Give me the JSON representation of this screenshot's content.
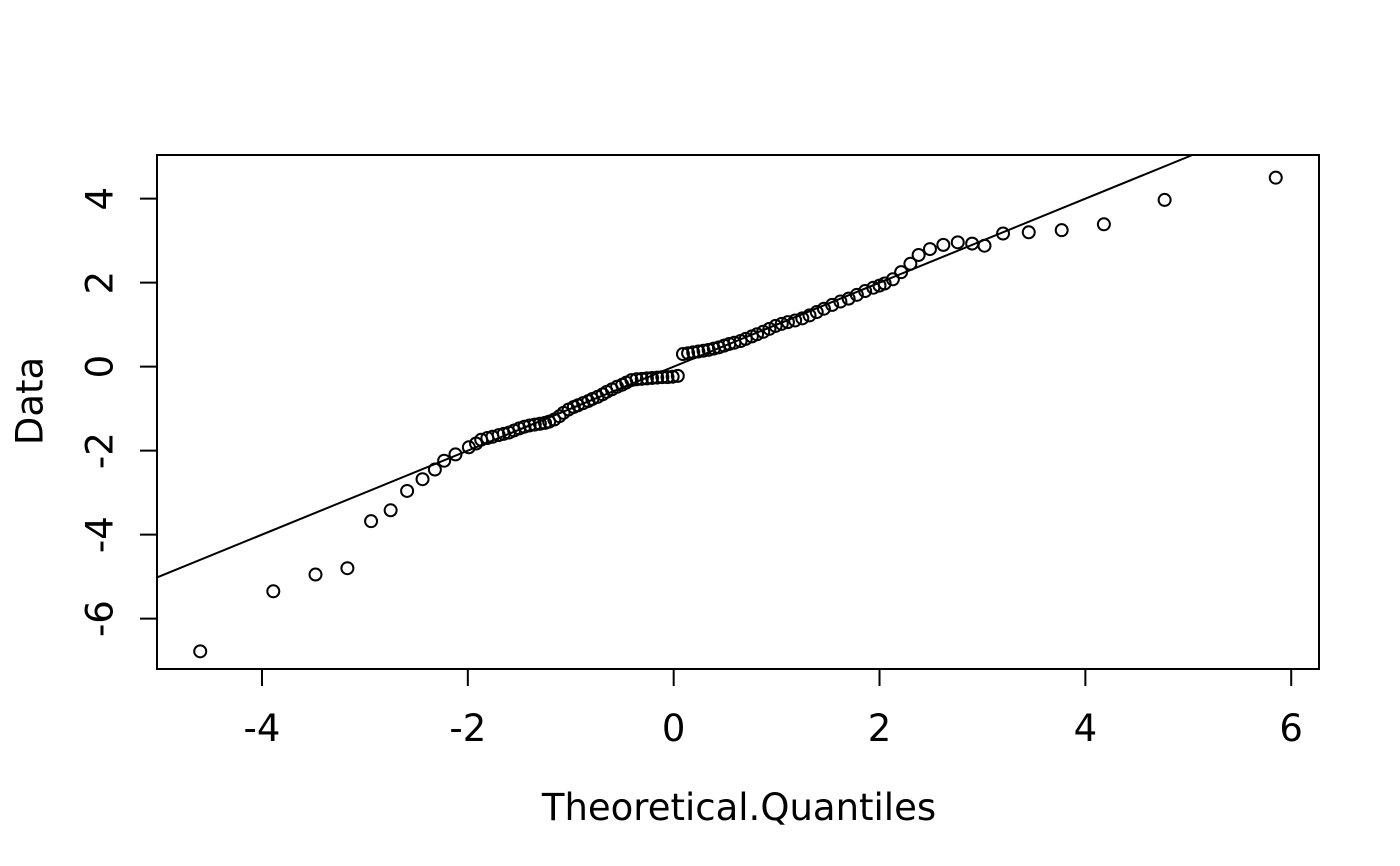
{
  "figure": {
    "background": "#ffffff",
    "foreground": "#000000"
  },
  "chart_data": {
    "type": "scatter",
    "title": "",
    "xlabel": "Theoretical.Quantiles",
    "ylabel": "Data",
    "xlim": [
      -5.02,
      6.27
    ],
    "ylim": [
      -7.2,
      5.04
    ],
    "xticks": [
      -4,
      -2,
      0,
      2,
      4,
      6
    ],
    "yticks": [
      -6,
      -4,
      -2,
      0,
      2,
      4
    ],
    "grid": false,
    "legend": null,
    "marker": "open-circle",
    "marker_color": "#000000",
    "reference_line": {
      "intercept": 0,
      "slope": 1,
      "color": "#000000"
    },
    "points": [
      [
        -4.6,
        -6.78
      ],
      [
        -3.89,
        -5.35
      ],
      [
        -3.48,
        -4.95
      ],
      [
        -3.17,
        -4.8
      ],
      [
        -2.94,
        -3.68
      ],
      [
        -2.75,
        -3.42
      ],
      [
        -2.59,
        -2.96
      ],
      [
        -2.44,
        -2.68
      ],
      [
        -2.32,
        -2.45
      ],
      [
        -2.23,
        -2.24
      ],
      [
        -2.12,
        -2.09
      ],
      [
        -1.99,
        -1.92
      ],
      [
        -1.92,
        -1.83
      ],
      [
        -1.87,
        -1.74
      ],
      [
        -1.81,
        -1.7
      ],
      [
        -1.76,
        -1.67
      ],
      [
        -1.7,
        -1.63
      ],
      [
        -1.65,
        -1.6
      ],
      [
        -1.6,
        -1.57
      ],
      [
        -1.55,
        -1.52
      ],
      [
        -1.5,
        -1.47
      ],
      [
        -1.45,
        -1.43
      ],
      [
        -1.4,
        -1.4
      ],
      [
        -1.35,
        -1.38
      ],
      [
        -1.3,
        -1.36
      ],
      [
        -1.25,
        -1.34
      ],
      [
        -1.21,
        -1.31
      ],
      [
        -1.16,
        -1.26
      ],
      [
        -1.11,
        -1.18
      ],
      [
        -1.07,
        -1.1
      ],
      [
        -1.02,
        -1.02
      ],
      [
        -0.97,
        -0.96
      ],
      [
        -0.93,
        -0.92
      ],
      [
        -0.88,
        -0.87
      ],
      [
        -0.83,
        -0.82
      ],
      [
        -0.79,
        -0.77
      ],
      [
        -0.74,
        -0.72
      ],
      [
        -0.69,
        -0.66
      ],
      [
        -0.65,
        -0.6
      ],
      [
        -0.6,
        -0.54
      ],
      [
        -0.55,
        -0.48
      ],
      [
        -0.5,
        -0.43
      ],
      [
        -0.46,
        -0.38
      ],
      [
        -0.41,
        -0.32
      ],
      [
        -0.36,
        -0.3
      ],
      [
        -0.31,
        -0.29
      ],
      [
        -0.26,
        -0.28
      ],
      [
        -0.21,
        -0.27
      ],
      [
        -0.16,
        -0.26
      ],
      [
        -0.11,
        -0.25
      ],
      [
        -0.06,
        -0.25
      ],
      [
        -0.01,
        -0.24
      ],
      [
        0.04,
        -0.22
      ],
      [
        0.09,
        0.3
      ],
      [
        0.14,
        0.32
      ],
      [
        0.19,
        0.34
      ],
      [
        0.24,
        0.36
      ],
      [
        0.29,
        0.38
      ],
      [
        0.34,
        0.4
      ],
      [
        0.39,
        0.43
      ],
      [
        0.44,
        0.46
      ],
      [
        0.49,
        0.5
      ],
      [
        0.54,
        0.54
      ],
      [
        0.59,
        0.57
      ],
      [
        0.65,
        0.61
      ],
      [
        0.7,
        0.66
      ],
      [
        0.76,
        0.72
      ],
      [
        0.81,
        0.77
      ],
      [
        0.87,
        0.83
      ],
      [
        0.93,
        0.9
      ],
      [
        0.99,
        0.97
      ],
      [
        1.05,
        1.02
      ],
      [
        1.11,
        1.06
      ],
      [
        1.18,
        1.1
      ],
      [
        1.25,
        1.15
      ],
      [
        1.32,
        1.22
      ],
      [
        1.39,
        1.3
      ],
      [
        1.46,
        1.38
      ],
      [
        1.54,
        1.47
      ],
      [
        1.62,
        1.55
      ],
      [
        1.7,
        1.62
      ],
      [
        1.78,
        1.71
      ],
      [
        1.86,
        1.8
      ],
      [
        1.94,
        1.88
      ],
      [
        2.0,
        1.93
      ],
      [
        2.05,
        1.98
      ],
      [
        2.13,
        2.08
      ],
      [
        2.21,
        2.25
      ],
      [
        2.3,
        2.45
      ],
      [
        2.38,
        2.66
      ],
      [
        2.49,
        2.8
      ],
      [
        2.62,
        2.9
      ],
      [
        2.76,
        2.96
      ],
      [
        2.9,
        2.93
      ],
      [
        3.02,
        2.88
      ],
      [
        3.2,
        3.17
      ],
      [
        3.45,
        3.2
      ],
      [
        3.77,
        3.25
      ],
      [
        4.18,
        3.39
      ],
      [
        4.77,
        3.97
      ],
      [
        5.85,
        4.5
      ]
    ]
  }
}
